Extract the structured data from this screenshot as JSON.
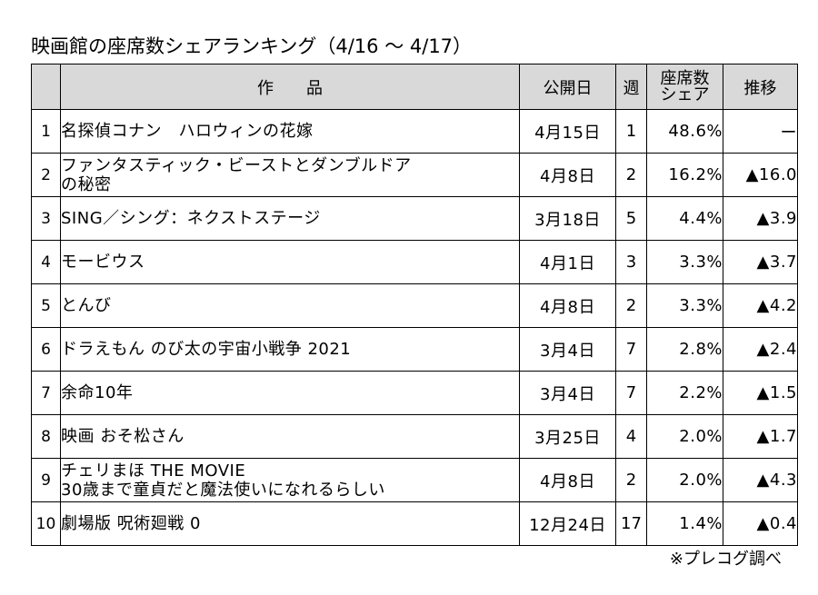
{
  "title": "映画館の座席数シェアランキング（4/16 ～ 4/17）",
  "table": {
    "headers": {
      "rank": "",
      "work": "作　　品",
      "release": "公開日",
      "week": "週",
      "share": "座席数\nシェア",
      "trend": "推移"
    },
    "rows": [
      {
        "rank": "1",
        "title": "名探偵コナン　ハロウィンの花嫁",
        "release": "4月15日",
        "week": "1",
        "share": "48.6%",
        "trend": "ー"
      },
      {
        "rank": "2",
        "title": "ファンタスティック・ビーストとダンブルドア\nの秘密",
        "release": "4月8日",
        "week": "2",
        "share": "16.2%",
        "trend": "▲16.0"
      },
      {
        "rank": "3",
        "title": "SING／シング：ネクストステージ",
        "release": "3月18日",
        "week": "5",
        "share": "4.4%",
        "trend": "▲3.9"
      },
      {
        "rank": "4",
        "title": "モービウス",
        "release": "4月1日",
        "week": "3",
        "share": "3.3%",
        "trend": "▲3.7"
      },
      {
        "rank": "5",
        "title": "とんび",
        "release": "4月8日",
        "week": "2",
        "share": "3.3%",
        "trend": "▲4.2"
      },
      {
        "rank": "6",
        "title": "ドラえもん のび太の宇宙小戦争 2021",
        "release": "3月4日",
        "week": "7",
        "share": "2.8%",
        "trend": "▲2.4"
      },
      {
        "rank": "7",
        "title": "余命10年",
        "release": "3月4日",
        "week": "7",
        "share": "2.2%",
        "trend": "▲1.5"
      },
      {
        "rank": "8",
        "title": "映画 おそ松さん",
        "release": "3月25日",
        "week": "4",
        "share": "2.0%",
        "trend": "▲1.7"
      },
      {
        "rank": "9",
        "title": "チェリまほ THE MOVIE\n30歳まで童貞だと魔法使いになれるらしい",
        "release": "4月8日",
        "week": "2",
        "share": "2.0%",
        "trend": "▲4.3"
      },
      {
        "rank": "10",
        "title": "劇場版 呪術廻戦 0",
        "release": "12月24日",
        "week": "17",
        "share": "1.4%",
        "trend": "▲0.4"
      }
    ]
  },
  "source": "※プレコグ調べ"
}
